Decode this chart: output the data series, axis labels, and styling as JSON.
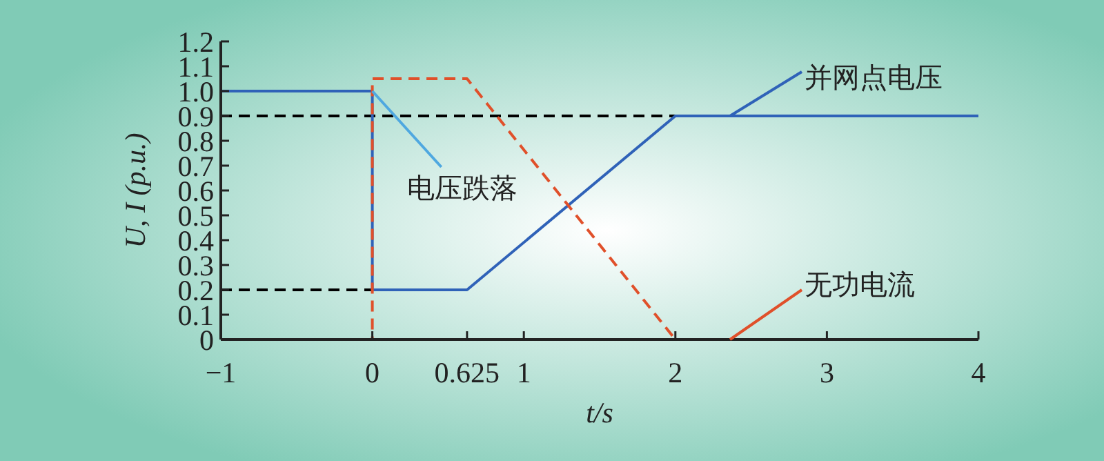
{
  "chart_data": {
    "type": "line",
    "xlabel": "t/s",
    "ylabel": "U, I (p.u.)",
    "xlim": [
      -1,
      4
    ],
    "xticks": [
      {
        "value": -1,
        "label": "−1"
      },
      0,
      0.625,
      1,
      2,
      3,
      4
    ],
    "ylim": [
      0,
      1.2
    ],
    "yticks": [
      0,
      0.1,
      0.2,
      0.3,
      0.4,
      0.5,
      0.6,
      0.7,
      0.8,
      0.9,
      {
        "value": 1,
        "label": "1.0"
      },
      1.1,
      1.2
    ],
    "grid": false,
    "series": [
      {
        "color": "#000000",
        "line_style": "dashed",
        "x": [
          -1,
          2
        ],
        "values": [
          0.9,
          0.9
        ]
      },
      {
        "color": "#000000",
        "line_style": "dashed",
        "x": [
          -1,
          0
        ],
        "values": [
          0.2,
          0.2
        ]
      },
      {
        "name": "并网点电压",
        "color": "#2f62b8",
        "line_style": "solid",
        "x": [
          -1,
          0,
          0,
          0.625,
          2,
          4
        ],
        "values": [
          1,
          1,
          0.2,
          0.2,
          0.9,
          0.9
        ]
      },
      {
        "name": "无功电流",
        "color": "#e0502a",
        "line_style": "dashed",
        "x": [
          -1,
          0,
          0,
          0.625,
          2,
          4
        ],
        "values": [
          0,
          0,
          1.05,
          1.05,
          0,
          0
        ]
      }
    ],
    "annotations": [
      {
        "text": "电压跌落",
        "x": 0,
        "y": 1
      }
    ]
  }
}
